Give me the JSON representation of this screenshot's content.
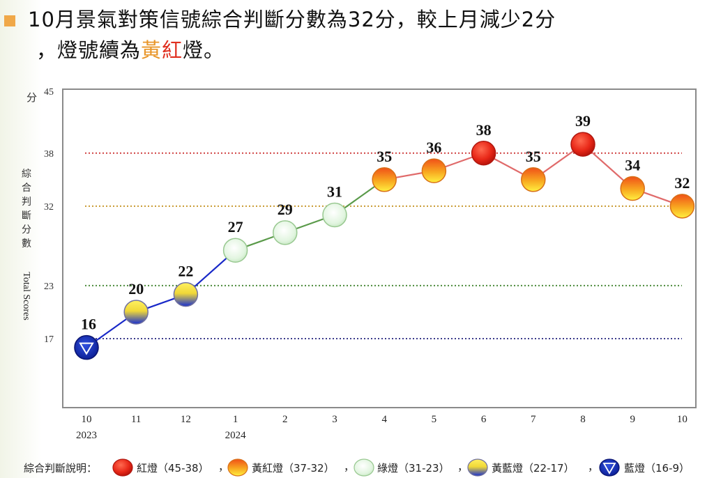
{
  "headline": {
    "line1": "10月景氣對策信號綜合判斷分數為32分，較上月減少2分",
    "line2_prefix": "，燈號續為",
    "signal_yellow": "黃",
    "signal_red": "紅",
    "line2_suffix": "燈。"
  },
  "chart_data": {
    "type": "line",
    "title": "",
    "y_unit_label": "分",
    "ylabel_zh": [
      "綜",
      "合",
      "判",
      "斷",
      "分",
      "數"
    ],
    "ylabel_en": "Total Scores",
    "ylim": [
      10,
      45
    ],
    "yticks": [
      45,
      38,
      32,
      23,
      17
    ],
    "categories": [
      "10",
      "11",
      "12",
      "1",
      "2",
      "3",
      "4",
      "5",
      "6",
      "7",
      "8",
      "9",
      "10"
    ],
    "year_labels": [
      {
        "index": 0,
        "label": "2023"
      },
      {
        "index": 3,
        "label": "2024"
      }
    ],
    "values": [
      16,
      20,
      22,
      27,
      29,
      31,
      35,
      36,
      38,
      35,
      39,
      34,
      32
    ],
    "thresholds": [
      {
        "value": 38,
        "color": "#d04040"
      },
      {
        "value": 32,
        "color": "#c89a30"
      },
      {
        "value": 23,
        "color": "#4a8a3a"
      },
      {
        "value": 17,
        "color": "#3a3a8a"
      }
    ]
  },
  "legend": {
    "title": "綜合判斷說明：",
    "separator": "，",
    "items": [
      {
        "key": "red",
        "label": "紅燈（45-38）",
        "color": "#e02a20"
      },
      {
        "key": "yellowred",
        "label": "黃紅燈（37-32）",
        "color": "#f0a020"
      },
      {
        "key": "green",
        "label": "綠燈（31-23）",
        "color": "#dff3df"
      },
      {
        "key": "yellowblue",
        "label": "黃藍燈（22-17）",
        "color": "#e8e040"
      },
      {
        "key": "blue",
        "label": "藍燈（16-9）",
        "color": "#1030b0"
      }
    ]
  }
}
